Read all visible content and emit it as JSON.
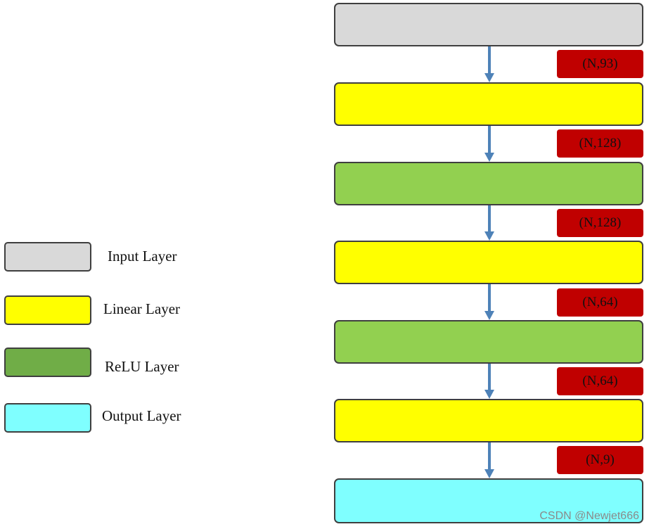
{
  "colors": {
    "input": "#d9d9d9",
    "linear": "#ffff00",
    "relu": "#92d050",
    "relu_legend": "#70ad47",
    "output": "#7fffff",
    "shape_tag": "#c00000",
    "arrow": "#4e82b8"
  },
  "legend": [
    {
      "label": "Input Layer"
    },
    {
      "label": "Linear Layer"
    },
    {
      "label": "ReLU Layer"
    },
    {
      "label": "Output Layer"
    }
  ],
  "shapes": [
    "(N,93)",
    "(N,128)",
    "(N,128)",
    "(N,64)",
    "(N,64)",
    "(N,9)"
  ],
  "watermark": "CSDN @Newjet666"
}
